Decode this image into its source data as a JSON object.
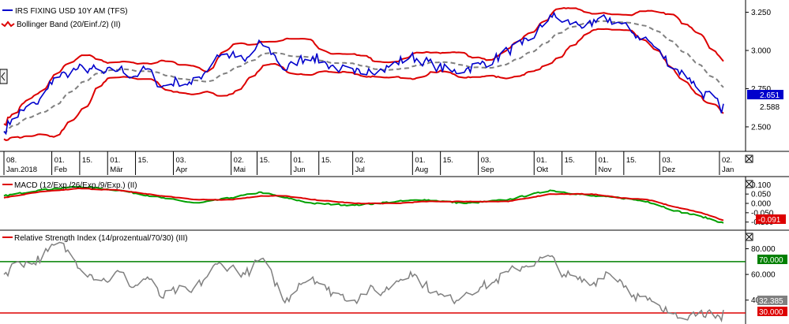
{
  "colors": {
    "price": "#0000cc",
    "bollinger": "#dd0000",
    "middle": "#808080",
    "macd": "#00a000",
    "signal": "#dd0000",
    "rsi": "#808080",
    "rsi_upper": "#008000",
    "rsi_lower": "#dd0000",
    "grid": "#000000",
    "badge_blue": "#0000cc",
    "badge_red": "#dd0000",
    "badge_green": "#008000",
    "badge_gray": "#808080"
  },
  "icons": {
    "close": "close-icon",
    "collapse": "chevron-left-icon"
  },
  "chart_data": [
    {
      "type": "line",
      "title": "",
      "legend": [
        {
          "label": "IRS FIXING USD 10Y AM (TFS)",
          "color": "#0000cc"
        },
        {
          "label": "Bollinger Band (20/Einf./2) (II)",
          "color": "#dd0000"
        }
      ],
      "ylim": [
        2.35,
        3.32
      ],
      "y_ticks": [
        "2.500",
        "2.750",
        "3.000",
        "3.250"
      ],
      "y_tick_values": [
        2.5,
        2.75,
        3.0,
        3.25
      ],
      "x_month_labels": [
        {
          "day": "08.",
          "month": "Jan.2018"
        },
        {
          "day": "01.",
          "month": "Feb"
        },
        {
          "day": "15.",
          "month": ""
        },
        {
          "day": "01.",
          "month": "Mär"
        },
        {
          "day": "15.",
          "month": ""
        },
        {
          "day": "03.",
          "month": "Apr"
        },
        {
          "day": "02.",
          "month": "Mai"
        },
        {
          "day": "15.",
          "month": ""
        },
        {
          "day": "01.",
          "month": "Jun"
        },
        {
          "day": "15.",
          "month": ""
        },
        {
          "day": "02.",
          "month": "Jul"
        },
        {
          "day": "01.",
          "month": "Aug"
        },
        {
          "day": "15.",
          "month": ""
        },
        {
          "day": "03.",
          "month": "Sep"
        },
        {
          "day": "01.",
          "month": "Okt"
        },
        {
          "day": "15.",
          "month": ""
        },
        {
          "day": "01.",
          "month": "Nov"
        },
        {
          "day": "15.",
          "month": ""
        },
        {
          "day": "03.",
          "month": "Dez"
        },
        {
          "day": "02.",
          "month": "Jan"
        }
      ],
      "x_month_ticks": [
        "2018-01-08",
        "2018-02-01",
        "2018-02-15",
        "2018-03-01",
        "2018-03-15",
        "2018-04-03",
        "2018-05-02",
        "2018-05-15",
        "2018-06-01",
        "2018-06-15",
        "2018-07-02",
        "2018-08-01",
        "2018-08-15",
        "2018-09-03",
        "2018-10-01",
        "2018-10-15",
        "2018-11-01",
        "2018-11-15",
        "2018-12-03",
        "2019-01-02"
      ],
      "x_range": [
        "2018-01-08",
        "2019-01-04"
      ],
      "price_anchors": [
        [
          "2018-01-08",
          2.47
        ],
        [
          "2018-01-12",
          2.55
        ],
        [
          "2018-01-19",
          2.63
        ],
        [
          "2018-01-25",
          2.65
        ],
        [
          "2018-01-30",
          2.75
        ],
        [
          "2018-02-02",
          2.82
        ],
        [
          "2018-02-08",
          2.85
        ],
        [
          "2018-02-14",
          2.88
        ],
        [
          "2018-02-21",
          2.88
        ],
        [
          "2018-02-27",
          2.85
        ],
        [
          "2018-03-07",
          2.88
        ],
        [
          "2018-03-14",
          2.83
        ],
        [
          "2018-03-21",
          2.88
        ],
        [
          "2018-03-28",
          2.76
        ],
        [
          "2018-04-05",
          2.8
        ],
        [
          "2018-04-12",
          2.78
        ],
        [
          "2018-04-19",
          2.86
        ],
        [
          "2018-04-25",
          2.97
        ],
        [
          "2018-05-02",
          2.97
        ],
        [
          "2018-05-09",
          2.93
        ],
        [
          "2018-05-17",
          3.05
        ],
        [
          "2018-05-23",
          2.98
        ],
        [
          "2018-05-29",
          2.87
        ],
        [
          "2018-06-05",
          2.94
        ],
        [
          "2018-06-12",
          2.96
        ],
        [
          "2018-06-19",
          2.91
        ],
        [
          "2018-06-26",
          2.88
        ],
        [
          "2018-07-03",
          2.85
        ],
        [
          "2018-07-10",
          2.88
        ],
        [
          "2018-07-17",
          2.87
        ],
        [
          "2018-07-24",
          2.92
        ],
        [
          "2018-07-31",
          2.96
        ],
        [
          "2018-08-07",
          2.93
        ],
        [
          "2018-08-14",
          2.89
        ],
        [
          "2018-08-21",
          2.86
        ],
        [
          "2018-08-28",
          2.88
        ],
        [
          "2018-09-04",
          2.91
        ],
        [
          "2018-09-11",
          2.94
        ],
        [
          "2018-09-18",
          3.0
        ],
        [
          "2018-09-25",
          3.04
        ],
        [
          "2018-10-02",
          3.11
        ],
        [
          "2018-10-09",
          3.23
        ],
        [
          "2018-10-16",
          3.19
        ],
        [
          "2018-10-23",
          3.17
        ],
        [
          "2018-10-30",
          3.16
        ],
        [
          "2018-11-06",
          3.21
        ],
        [
          "2018-11-13",
          3.18
        ],
        [
          "2018-11-20",
          3.11
        ],
        [
          "2018-11-27",
          3.07
        ],
        [
          "2018-12-04",
          2.97
        ],
        [
          "2018-12-11",
          2.88
        ],
        [
          "2018-12-18",
          2.82
        ],
        [
          "2018-12-24",
          2.72
        ],
        [
          "2018-12-31",
          2.69
        ],
        [
          "2019-01-03",
          2.59
        ],
        [
          "2019-01-04",
          2.651
        ]
      ],
      "current_value": "2.651",
      "second_value": "2.588"
    },
    {
      "type": "line",
      "title": "",
      "legend": [
        {
          "label": "MACD (12/Exp./26/Exp./9/Exp.) (II)",
          "color": "#dd0000"
        }
      ],
      "ylim": [
        -0.135,
        0.135
      ],
      "y_ticks": [
        "0.100",
        "0.050",
        "0.000",
        "-0.050",
        "-0.100"
      ],
      "y_tick_values": [
        0.1,
        0.05,
        0.0,
        -0.05,
        -0.1
      ],
      "current_value": "-0.091",
      "macd_anchors": [
        [
          "2018-01-08",
          0.04
        ],
        [
          "2018-01-25",
          0.07
        ],
        [
          "2018-02-15",
          0.09
        ],
        [
          "2018-03-07",
          0.07
        ],
        [
          "2018-03-28",
          0.03
        ],
        [
          "2018-04-15",
          0.0
        ],
        [
          "2018-05-02",
          0.03
        ],
        [
          "2018-05-17",
          0.06
        ],
        [
          "2018-05-29",
          0.03
        ],
        [
          "2018-06-12",
          0.0
        ],
        [
          "2018-07-03",
          -0.01
        ],
        [
          "2018-07-24",
          0.01
        ],
        [
          "2018-08-07",
          0.02
        ],
        [
          "2018-08-28",
          0.0
        ],
        [
          "2018-09-18",
          0.02
        ],
        [
          "2018-10-09",
          0.07
        ],
        [
          "2018-10-30",
          0.04
        ],
        [
          "2018-11-13",
          0.03
        ],
        [
          "2018-11-27",
          0.01
        ],
        [
          "2018-12-11",
          -0.04
        ],
        [
          "2018-12-24",
          -0.07
        ],
        [
          "2019-01-04",
          -0.105
        ]
      ],
      "signal_anchors": [
        [
          "2018-01-08",
          0.03
        ],
        [
          "2018-01-25",
          0.06
        ],
        [
          "2018-02-15",
          0.08
        ],
        [
          "2018-03-07",
          0.07
        ],
        [
          "2018-03-28",
          0.04
        ],
        [
          "2018-04-15",
          0.02
        ],
        [
          "2018-05-02",
          0.02
        ],
        [
          "2018-05-17",
          0.04
        ],
        [
          "2018-05-29",
          0.04
        ],
        [
          "2018-06-12",
          0.02
        ],
        [
          "2018-07-03",
          0.0
        ],
        [
          "2018-07-24",
          0.0
        ],
        [
          "2018-08-07",
          0.01
        ],
        [
          "2018-08-28",
          0.01
        ],
        [
          "2018-09-18",
          0.01
        ],
        [
          "2018-10-09",
          0.05
        ],
        [
          "2018-10-30",
          0.05
        ],
        [
          "2018-11-13",
          0.03
        ],
        [
          "2018-11-27",
          0.02
        ],
        [
          "2018-12-11",
          -0.02
        ],
        [
          "2018-12-24",
          -0.05
        ],
        [
          "2019-01-04",
          -0.091
        ]
      ]
    },
    {
      "type": "line",
      "title": "",
      "legend": [
        {
          "label": "Relative Strength Index (14/prozentual/70/30) (III)",
          "color": "#808080"
        }
      ],
      "ylim": [
        22,
        92
      ],
      "y_ticks": [
        "80.000",
        "60.000",
        "40.000"
      ],
      "y_tick_values": [
        80,
        60,
        40
      ],
      "upper_level": 70,
      "lower_level": 30,
      "upper_label": "70.000",
      "lower_label": "30.000",
      "current_value": "32.385",
      "rsi_anchors": [
        [
          "2018-01-08",
          60
        ],
        [
          "2018-01-15",
          70
        ],
        [
          "2018-01-22",
          68
        ],
        [
          "2018-01-30",
          78
        ],
        [
          "2018-02-05",
          85
        ],
        [
          "2018-02-12",
          72
        ],
        [
          "2018-02-20",
          60
        ],
        [
          "2018-02-28",
          55
        ],
        [
          "2018-03-07",
          62
        ],
        [
          "2018-03-14",
          50
        ],
        [
          "2018-03-21",
          58
        ],
        [
          "2018-03-28",
          42
        ],
        [
          "2018-04-05",
          48
        ],
        [
          "2018-04-12",
          46
        ],
        [
          "2018-04-19",
          57
        ],
        [
          "2018-04-25",
          68
        ],
        [
          "2018-05-02",
          66
        ],
        [
          "2018-05-09",
          60
        ],
        [
          "2018-05-17",
          72
        ],
        [
          "2018-05-23",
          58
        ],
        [
          "2018-05-29",
          38
        ],
        [
          "2018-06-05",
          53
        ],
        [
          "2018-06-12",
          58
        ],
        [
          "2018-06-19",
          48
        ],
        [
          "2018-06-26",
          44
        ],
        [
          "2018-07-03",
          40
        ],
        [
          "2018-07-10",
          48
        ],
        [
          "2018-07-17",
          46
        ],
        [
          "2018-07-24",
          55
        ],
        [
          "2018-07-31",
          62
        ],
        [
          "2018-08-07",
          52
        ],
        [
          "2018-08-14",
          44
        ],
        [
          "2018-08-21",
          40
        ],
        [
          "2018-08-28",
          46
        ],
        [
          "2018-09-04",
          50
        ],
        [
          "2018-09-11",
          54
        ],
        [
          "2018-09-18",
          62
        ],
        [
          "2018-09-25",
          66
        ],
        [
          "2018-10-02",
          70
        ],
        [
          "2018-10-09",
          74
        ],
        [
          "2018-10-16",
          60
        ],
        [
          "2018-10-23",
          56
        ],
        [
          "2018-10-30",
          52
        ],
        [
          "2018-11-06",
          62
        ],
        [
          "2018-11-13",
          56
        ],
        [
          "2018-11-20",
          44
        ],
        [
          "2018-11-27",
          40
        ],
        [
          "2018-12-04",
          32
        ],
        [
          "2018-12-11",
          30
        ],
        [
          "2018-12-18",
          28
        ],
        [
          "2018-12-24",
          32
        ],
        [
          "2018-12-31",
          26
        ],
        [
          "2019-01-03",
          24
        ],
        [
          "2019-01-04",
          32.385
        ]
      ]
    }
  ]
}
